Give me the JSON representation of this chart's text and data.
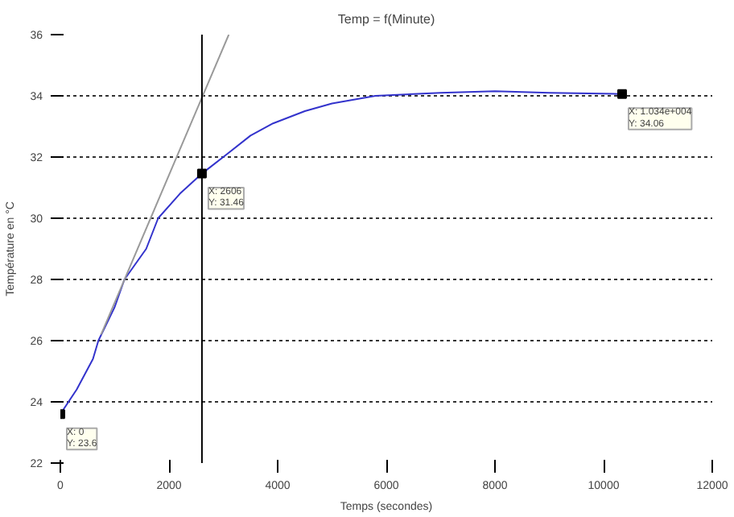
{
  "chart_data": {
    "type": "line",
    "title": "Temp = f(Minute)",
    "xlabel": "Temps (secondes)",
    "ylabel": "Température en °C",
    "xlim": [
      0,
      12000
    ],
    "ylim": [
      22,
      36
    ],
    "xticks": [
      0,
      2000,
      4000,
      6000,
      8000,
      10000,
      12000
    ],
    "yticks": [
      22,
      24,
      26,
      28,
      30,
      32,
      34,
      36
    ],
    "grid": "y",
    "series": [
      {
        "color": "#3333cc",
        "x": [
          0,
          300,
          600,
          700,
          1000,
          1180,
          1580,
          1800,
          2200,
          2606,
          3070,
          3500,
          3915,
          4500,
          5000,
          5800,
          7000,
          8000,
          9000,
          10340
        ],
        "values": [
          23.6,
          24.4,
          25.4,
          26.0,
          27.1,
          28.0,
          29.0,
          30.0,
          30.8,
          31.46,
          32.1,
          32.7,
          33.1,
          33.5,
          33.75,
          34.0,
          34.1,
          34.15,
          34.1,
          34.06
        ]
      },
      {
        "type": "line",
        "color": "#999999",
        "x": [
          750,
          3100
        ],
        "values": [
          26.2,
          36
        ]
      },
      {
        "type": "scatter",
        "marker": "square",
        "color": "#000000",
        "x": [
          0,
          2606,
          10340
        ],
        "values": [
          23.6,
          31.46,
          34.06
        ]
      }
    ],
    "ref_lines": [
      {
        "axis": "x",
        "value": 2606,
        "color": "#000000"
      }
    ],
    "annotations": [
      {
        "text": "X: 0\nY: 23.6",
        "x": 0,
        "y": 23.6
      },
      {
        "text": "X: 2606\nY: 31.46",
        "x": 2606,
        "y": 31.46
      },
      {
        "text": "X: 1.034e+004\nY: 34.06",
        "x": 10340,
        "y": 34.06
      }
    ]
  }
}
